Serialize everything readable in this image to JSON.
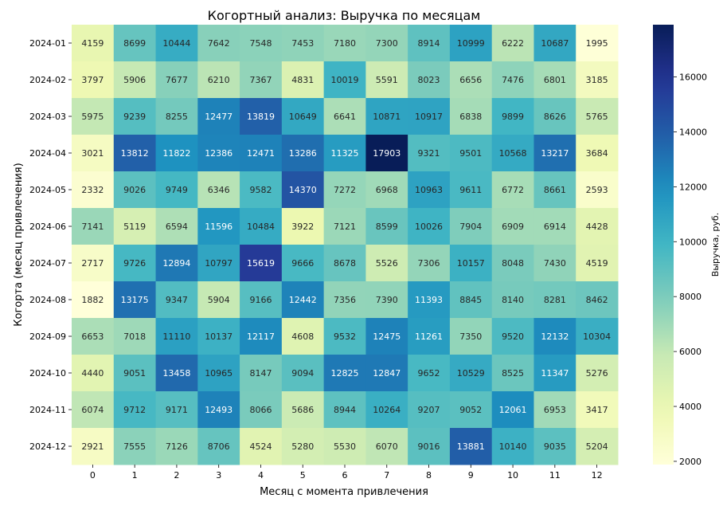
{
  "chart_data": {
    "type": "heatmap",
    "title": "Когортный анализ: Выручка по месяцам",
    "xlabel": "Месяц с момента привлечения",
    "ylabel": "Когорта (месяц привлечения)",
    "colorbar_label": "Выручка, руб.",
    "colormap": "YlGnBu",
    "vmin": 1882,
    "vmax": 17903,
    "colorbar_ticks": [
      2000,
      4000,
      6000,
      8000,
      10000,
      12000,
      14000,
      16000
    ],
    "x": [
      "0",
      "1",
      "2",
      "3",
      "4",
      "5",
      "6",
      "7",
      "8",
      "9",
      "10",
      "11",
      "12"
    ],
    "y": [
      "2024-01",
      "2024-02",
      "2024-03",
      "2024-04",
      "2024-05",
      "2024-06",
      "2024-07",
      "2024-08",
      "2024-09",
      "2024-10",
      "2024-11",
      "2024-12"
    ],
    "values": [
      [
        4159,
        8699,
        10444,
        7642,
        7548,
        7453,
        7180,
        7300,
        8914,
        10999,
        6222,
        10687,
        1995
      ],
      [
        3797,
        5906,
        7677,
        6210,
        7367,
        4831,
        10019,
        5591,
        8023,
        6656,
        7476,
        6801,
        3185
      ],
      [
        5975,
        9239,
        8255,
        12477,
        13819,
        10649,
        6641,
        10871,
        10917,
        6838,
        9899,
        8626,
        5765
      ],
      [
        3021,
        13812,
        11822,
        12386,
        12471,
        13286,
        11325,
        17903,
        9321,
        9501,
        10568,
        13217,
        3684
      ],
      [
        2332,
        9026,
        9749,
        6346,
        9582,
        14370,
        7272,
        6968,
        10963,
        9611,
        6772,
        8661,
        2593
      ],
      [
        7141,
        5119,
        6594,
        11596,
        10484,
        3922,
        7121,
        8599,
        10026,
        7904,
        6909,
        6914,
        4428
      ],
      [
        2717,
        9726,
        12894,
        10797,
        15619,
        9666,
        8678,
        5526,
        7306,
        10157,
        8048,
        7430,
        4519
      ],
      [
        1882,
        13175,
        9347,
        5904,
        9166,
        12442,
        7356,
        7390,
        11393,
        8845,
        8140,
        8281,
        8462
      ],
      [
        6653,
        7018,
        11110,
        10137,
        12117,
        4608,
        9532,
        12475,
        11261,
        7350,
        9520,
        12132,
        10304
      ],
      [
        4440,
        9051,
        13458,
        10965,
        8147,
        9094,
        12825,
        12847,
        9652,
        10529,
        8525,
        11347,
        5276
      ],
      [
        6074,
        9712,
        9171,
        12493,
        8066,
        5686,
        8944,
        10264,
        9207,
        9052,
        12061,
        6953,
        3417
      ],
      [
        2921,
        7555,
        7126,
        8706,
        4524,
        5280,
        5530,
        6070,
        9016,
        13881,
        10140,
        9035,
        5204
      ]
    ]
  }
}
